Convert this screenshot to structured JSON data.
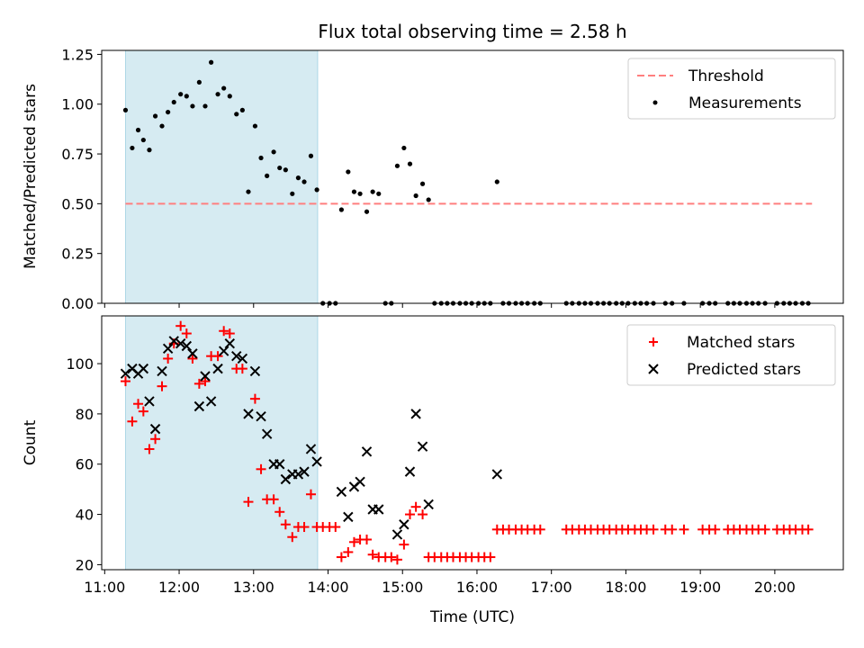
{
  "chart_data": [
    {
      "type": "scatter",
      "title": "Flux total observing time = 2.58 h",
      "xlabel": "",
      "ylabel": "Matched/Predicted stars",
      "ylim": [
        0,
        1.27
      ],
      "yticks": [
        0.0,
        0.25,
        0.5,
        0.75,
        1.0,
        1.25
      ],
      "ytick_labels": [
        "0.00",
        "0.25",
        "0.50",
        "0.75",
        "1.00",
        "1.25"
      ],
      "xlim": [
        10.96,
        20.92
      ],
      "shaded_span": [
        11.28,
        13.86
      ],
      "legend_position": "upper right",
      "threshold": {
        "name": "Threshold",
        "value": 0.5,
        "x_range": [
          11.28,
          20.5
        ],
        "color": "#ff7f7f"
      },
      "series": [
        {
          "name": "Measurements",
          "color": "#000000",
          "marker": "dot",
          "points": [
            [
              11.28,
              0.97
            ],
            [
              11.37,
              0.78
            ],
            [
              11.45,
              0.87
            ],
            [
              11.52,
              0.82
            ],
            [
              11.6,
              0.77
            ],
            [
              11.68,
              0.94
            ],
            [
              11.77,
              0.89
            ],
            [
              11.85,
              0.96
            ],
            [
              11.93,
              1.01
            ],
            [
              12.02,
              1.05
            ],
            [
              12.1,
              1.04
            ],
            [
              12.18,
              0.99
            ],
            [
              12.27,
              1.11
            ],
            [
              12.35,
              0.99
            ],
            [
              12.43,
              1.21
            ],
            [
              12.52,
              1.05
            ],
            [
              12.6,
              1.08
            ],
            [
              12.68,
              1.04
            ],
            [
              12.77,
              0.95
            ],
            [
              12.85,
              0.97
            ],
            [
              12.93,
              0.56
            ],
            [
              13.02,
              0.89
            ],
            [
              13.1,
              0.73
            ],
            [
              13.18,
              0.64
            ],
            [
              13.27,
              0.76
            ],
            [
              13.35,
              0.68
            ],
            [
              13.43,
              0.67
            ],
            [
              13.52,
              0.55
            ],
            [
              13.6,
              0.63
            ],
            [
              13.68,
              0.61
            ],
            [
              13.77,
              0.74
            ],
            [
              13.85,
              0.57
            ],
            [
              13.93,
              0.0
            ],
            [
              14.02,
              0.0
            ],
            [
              14.1,
              0.0
            ],
            [
              14.18,
              0.47
            ],
            [
              14.27,
              0.66
            ],
            [
              14.35,
              0.56
            ],
            [
              14.43,
              0.55
            ],
            [
              14.52,
              0.46
            ],
            [
              14.6,
              0.56
            ],
            [
              14.68,
              0.55
            ],
            [
              14.77,
              0.0
            ],
            [
              14.85,
              0.0
            ],
            [
              14.93,
              0.69
            ],
            [
              15.02,
              0.78
            ],
            [
              15.1,
              0.7
            ],
            [
              15.18,
              0.54
            ],
            [
              15.27,
              0.6
            ],
            [
              15.35,
              0.52
            ],
            [
              15.43,
              0.0
            ],
            [
              15.52,
              0.0
            ],
            [
              15.6,
              0.0
            ],
            [
              15.68,
              0.0
            ],
            [
              15.77,
              0.0
            ],
            [
              15.85,
              0.0
            ],
            [
              15.93,
              0.0
            ],
            [
              16.02,
              0.0
            ],
            [
              16.1,
              0.0
            ],
            [
              16.18,
              0.0
            ],
            [
              16.27,
              0.61
            ],
            [
              16.35,
              0.0
            ],
            [
              16.43,
              0.0
            ],
            [
              16.52,
              0.0
            ],
            [
              16.6,
              0.0
            ],
            [
              16.68,
              0.0
            ],
            [
              16.77,
              0.0
            ],
            [
              16.85,
              0.0
            ],
            [
              17.2,
              0.0
            ],
            [
              17.28,
              0.0
            ],
            [
              17.37,
              0.0
            ],
            [
              17.45,
              0.0
            ],
            [
              17.53,
              0.0
            ],
            [
              17.62,
              0.0
            ],
            [
              17.7,
              0.0
            ],
            [
              17.78,
              0.0
            ],
            [
              17.87,
              0.0
            ],
            [
              17.95,
              0.0
            ],
            [
              18.03,
              0.0
            ],
            [
              18.12,
              0.0
            ],
            [
              18.2,
              0.0
            ],
            [
              18.28,
              0.0
            ],
            [
              18.37,
              0.0
            ],
            [
              18.53,
              0.0
            ],
            [
              18.62,
              0.0
            ],
            [
              18.78,
              0.0
            ],
            [
              19.03,
              0.0
            ],
            [
              19.12,
              0.0
            ],
            [
              19.2,
              0.0
            ],
            [
              19.37,
              0.0
            ],
            [
              19.45,
              0.0
            ],
            [
              19.53,
              0.0
            ],
            [
              19.62,
              0.0
            ],
            [
              19.7,
              0.0
            ],
            [
              19.78,
              0.0
            ],
            [
              19.87,
              0.0
            ],
            [
              20.03,
              0.0
            ],
            [
              20.12,
              0.0
            ],
            [
              20.2,
              0.0
            ],
            [
              20.28,
              0.0
            ],
            [
              20.37,
              0.0
            ],
            [
              20.45,
              0.0
            ]
          ]
        }
      ]
    },
    {
      "type": "scatter",
      "title": "",
      "xlabel": "Time (UTC)",
      "ylabel": "Count",
      "ylim": [
        18,
        119
      ],
      "yticks": [
        20,
        40,
        60,
        80,
        100
      ],
      "ytick_labels": [
        "20",
        "40",
        "60",
        "80",
        "100"
      ],
      "xlim": [
        10.96,
        20.92
      ],
      "xticks": [
        11,
        12,
        13,
        14,
        15,
        16,
        17,
        18,
        19,
        20
      ],
      "xtick_labels": [
        "11:00",
        "12:00",
        "13:00",
        "14:00",
        "15:00",
        "16:00",
        "17:00",
        "18:00",
        "19:00",
        "20:00"
      ],
      "shaded_span": [
        11.28,
        13.86
      ],
      "legend_position": "upper right",
      "series": [
        {
          "name": "Matched stars",
          "color": "#ff0000",
          "marker": "plus",
          "points": [
            [
              11.28,
              93
            ],
            [
              11.37,
              77
            ],
            [
              11.45,
              84
            ],
            [
              11.52,
              81
            ],
            [
              11.6,
              66
            ],
            [
              11.68,
              70
            ],
            [
              11.77,
              91
            ],
            [
              11.85,
              102
            ],
            [
              11.93,
              108
            ],
            [
              12.02,
              115
            ],
            [
              12.1,
              112
            ],
            [
              12.18,
              102
            ],
            [
              12.27,
              92
            ],
            [
              12.35,
              93
            ],
            [
              12.43,
              103
            ],
            [
              12.52,
              103
            ],
            [
              12.6,
              113
            ],
            [
              12.68,
              112
            ],
            [
              12.77,
              98
            ],
            [
              12.85,
              98
            ],
            [
              12.93,
              45
            ],
            [
              13.02,
              86
            ],
            [
              13.1,
              58
            ],
            [
              13.18,
              46
            ],
            [
              13.27,
              46
            ],
            [
              13.35,
              41
            ],
            [
              13.43,
              36
            ],
            [
              13.52,
              31
            ],
            [
              13.6,
              35
            ],
            [
              13.68,
              35
            ],
            [
              13.77,
              48
            ],
            [
              13.85,
              35
            ],
            [
              13.93,
              35
            ],
            [
              14.02,
              35
            ],
            [
              14.1,
              35
            ],
            [
              14.18,
              23
            ],
            [
              14.27,
              25
            ],
            [
              14.35,
              29
            ],
            [
              14.43,
              30
            ],
            [
              14.52,
              30
            ],
            [
              14.6,
              24
            ],
            [
              14.68,
              23
            ],
            [
              14.77,
              23
            ],
            [
              14.85,
              23
            ],
            [
              14.93,
              22
            ],
            [
              15.02,
              28
            ],
            [
              15.1,
              40
            ],
            [
              15.18,
              43
            ],
            [
              15.27,
              40
            ],
            [
              15.35,
              23
            ],
            [
              15.43,
              23
            ],
            [
              15.52,
              23
            ],
            [
              15.6,
              23
            ],
            [
              15.68,
              23
            ],
            [
              15.77,
              23
            ],
            [
              15.85,
              23
            ],
            [
              15.93,
              23
            ],
            [
              16.02,
              23
            ],
            [
              16.1,
              23
            ],
            [
              16.18,
              23
            ],
            [
              16.27,
              34
            ],
            [
              16.35,
              34
            ],
            [
              16.43,
              34
            ],
            [
              16.52,
              34
            ],
            [
              16.6,
              34
            ],
            [
              16.68,
              34
            ],
            [
              16.77,
              34
            ],
            [
              16.85,
              34
            ],
            [
              17.2,
              34
            ],
            [
              17.28,
              34
            ],
            [
              17.37,
              34
            ],
            [
              17.45,
              34
            ],
            [
              17.53,
              34
            ],
            [
              17.62,
              34
            ],
            [
              17.7,
              34
            ],
            [
              17.78,
              34
            ],
            [
              17.87,
              34
            ],
            [
              17.95,
              34
            ],
            [
              18.03,
              34
            ],
            [
              18.12,
              34
            ],
            [
              18.2,
              34
            ],
            [
              18.28,
              34
            ],
            [
              18.37,
              34
            ],
            [
              18.53,
              34
            ],
            [
              18.62,
              34
            ],
            [
              18.78,
              34
            ],
            [
              19.03,
              34
            ],
            [
              19.12,
              34
            ],
            [
              19.2,
              34
            ],
            [
              19.37,
              34
            ],
            [
              19.45,
              34
            ],
            [
              19.53,
              34
            ],
            [
              19.62,
              34
            ],
            [
              19.7,
              34
            ],
            [
              19.78,
              34
            ],
            [
              19.87,
              34
            ],
            [
              20.03,
              34
            ],
            [
              20.12,
              34
            ],
            [
              20.2,
              34
            ],
            [
              20.28,
              34
            ],
            [
              20.37,
              34
            ],
            [
              20.45,
              34
            ]
          ]
        },
        {
          "name": "Predicted stars",
          "color": "#000000",
          "marker": "x",
          "points": [
            [
              11.28,
              96
            ],
            [
              11.37,
              98
            ],
            [
              11.45,
              96
            ],
            [
              11.52,
              98
            ],
            [
              11.6,
              85
            ],
            [
              11.68,
              74
            ],
            [
              11.77,
              97
            ],
            [
              11.85,
              106
            ],
            [
              11.93,
              109
            ],
            [
              12.02,
              108
            ],
            [
              12.1,
              107
            ],
            [
              12.18,
              104
            ],
            [
              12.27,
              83
            ],
            [
              12.35,
              95
            ],
            [
              12.43,
              85
            ],
            [
              12.52,
              98
            ],
            [
              12.6,
              105
            ],
            [
              12.68,
              108
            ],
            [
              12.77,
              103
            ],
            [
              12.85,
              102
            ],
            [
              12.93,
              80
            ],
            [
              13.02,
              97
            ],
            [
              13.1,
              79
            ],
            [
              13.18,
              72
            ],
            [
              13.27,
              60
            ],
            [
              13.35,
              60
            ],
            [
              13.43,
              54
            ],
            [
              13.52,
              56
            ],
            [
              13.6,
              56
            ],
            [
              13.68,
              57
            ],
            [
              13.77,
              66
            ],
            [
              13.85,
              61
            ],
            [
              14.18,
              49
            ],
            [
              14.27,
              39
            ],
            [
              14.35,
              51
            ],
            [
              14.43,
              53
            ],
            [
              14.52,
              65
            ],
            [
              14.6,
              42
            ],
            [
              14.68,
              42
            ],
            [
              14.93,
              32
            ],
            [
              15.02,
              36
            ],
            [
              15.1,
              57
            ],
            [
              15.18,
              80
            ],
            [
              15.27,
              67
            ],
            [
              15.35,
              44
            ],
            [
              16.27,
              56
            ]
          ]
        }
      ]
    }
  ]
}
